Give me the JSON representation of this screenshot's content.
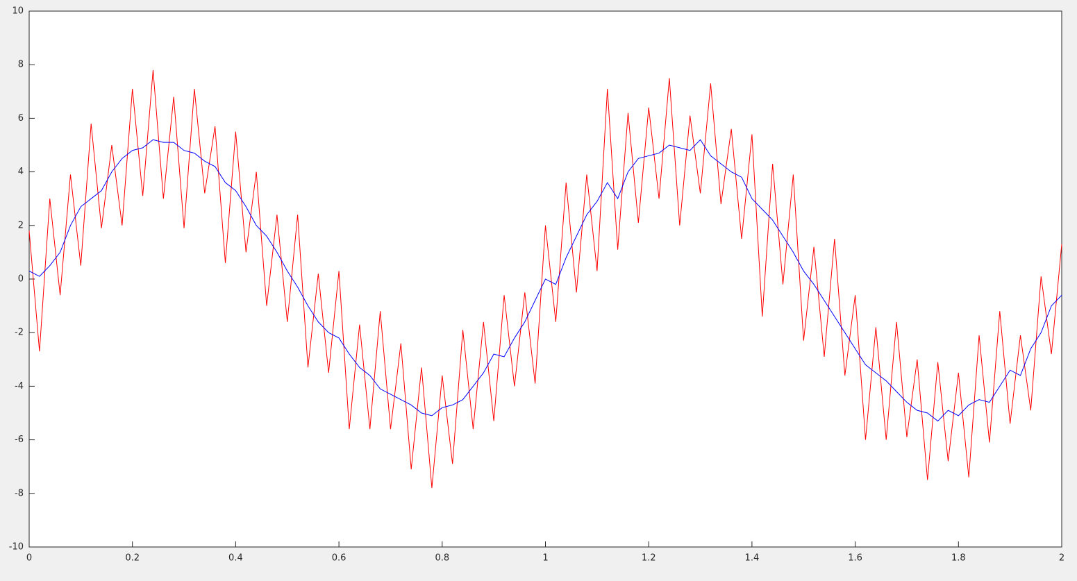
{
  "chart_data": {
    "type": "line",
    "x": [
      0,
      0.02,
      0.04,
      0.06,
      0.08,
      0.1,
      0.12,
      0.14,
      0.16,
      0.18,
      0.2,
      0.22,
      0.24,
      0.26,
      0.28,
      0.3,
      0.32,
      0.34,
      0.36,
      0.38,
      0.4,
      0.42,
      0.44,
      0.46,
      0.48,
      0.5,
      0.52,
      0.54,
      0.56,
      0.58,
      0.6,
      0.62,
      0.64,
      0.66,
      0.68,
      0.7,
      0.72,
      0.74,
      0.76,
      0.78,
      0.8,
      0.82,
      0.84,
      0.86,
      0.88,
      0.9,
      0.92,
      0.94,
      0.96,
      0.98,
      1,
      1.02,
      1.04,
      1.06,
      1.08,
      1.1,
      1.12,
      1.14,
      1.16,
      1.18,
      1.2,
      1.22,
      1.24,
      1.26,
      1.28,
      1.3,
      1.32,
      1.34,
      1.36,
      1.38,
      1.4,
      1.42,
      1.44,
      1.46,
      1.48,
      1.5,
      1.52,
      1.54,
      1.56,
      1.58,
      1.6,
      1.62,
      1.64,
      1.66,
      1.68,
      1.7,
      1.72,
      1.74,
      1.76,
      1.78,
      1.8,
      1.82,
      1.84,
      1.86,
      1.88,
      1.9,
      1.92,
      1.94,
      1.96,
      1.98,
      2
    ],
    "series": [
      {
        "color": "#ff0000",
        "values": [
          1.8,
          -2.7,
          3.0,
          -0.6,
          3.9,
          0.5,
          5.8,
          1.9,
          5.0,
          2.0,
          7.1,
          3.1,
          7.8,
          3.0,
          6.8,
          1.9,
          7.1,
          3.2,
          5.7,
          0.6,
          5.5,
          1.0,
          4.0,
          -1.0,
          2.4,
          -1.6,
          2.4,
          -3.3,
          0.2,
          -3.5,
          0.3,
          -5.6,
          -1.7,
          -5.6,
          -1.2,
          -5.6,
          -2.4,
          -7.1,
          -3.3,
          -7.8,
          -3.6,
          -6.9,
          -1.9,
          -5.6,
          -1.6,
          -5.3,
          -0.6,
          -4.0,
          -0.5,
          -3.9,
          2.0,
          -1.6,
          3.6,
          -0.5,
          3.9,
          0.3,
          7.1,
          1.1,
          6.2,
          2.1,
          6.4,
          3.0,
          7.5,
          2.0,
          6.1,
          3.2,
          7.3,
          2.8,
          5.6,
          1.5,
          5.4,
          -1.4,
          4.3,
          -0.2,
          3.9,
          -2.3,
          1.2,
          -2.9,
          1.5,
          -3.6,
          -0.6,
          -6.0,
          -1.8,
          -6.0,
          -1.6,
          -5.9,
          -3.0,
          -7.5,
          -3.1,
          -6.8,
          -3.5,
          -7.4,
          -2.1,
          -6.1,
          -1.2,
          -5.4,
          -2.1,
          -4.9,
          0.1,
          -2.8,
          1.3
        ]
      },
      {
        "color": "#0000ff",
        "values": [
          0.3,
          0.1,
          0.5,
          1.0,
          2.0,
          2.7,
          3.0,
          3.3,
          4.0,
          4.5,
          4.8,
          4.9,
          5.2,
          5.1,
          5.1,
          4.8,
          4.7,
          4.4,
          4.2,
          3.6,
          3.3,
          2.7,
          2.0,
          1.6,
          1.0,
          0.3,
          -0.3,
          -1.0,
          -1.6,
          -2.0,
          -2.2,
          -2.8,
          -3.3,
          -3.6,
          -4.1,
          -4.3,
          -4.5,
          -4.7,
          -5.0,
          -5.1,
          -4.8,
          -4.7,
          -4.5,
          -4.0,
          -3.5,
          -2.8,
          -2.9,
          -2.2,
          -1.6,
          -0.8,
          0.0,
          -0.2,
          0.8,
          1.6,
          2.4,
          2.9,
          3.6,
          3.0,
          4.0,
          4.5,
          4.6,
          4.7,
          5.0,
          4.9,
          4.8,
          5.2,
          4.6,
          4.3,
          4.0,
          3.8,
          3.0,
          2.6,
          2.2,
          1.6,
          1.0,
          0.3,
          -0.2,
          -0.8,
          -1.4,
          -2.0,
          -2.6,
          -3.2,
          -3.5,
          -3.8,
          -4.2,
          -4.6,
          -4.9,
          -5.0,
          -5.3,
          -4.9,
          -5.1,
          -4.7,
          -4.5,
          -4.6,
          -4.0,
          -3.4,
          -3.6,
          -2.6,
          -2.0,
          -1.0,
          -0.6
        ]
      }
    ],
    "xlim": [
      0,
      2
    ],
    "xticks": [
      0,
      0.2,
      0.4,
      0.6,
      0.8,
      1,
      1.2,
      1.4,
      1.6,
      1.8,
      2
    ],
    "ylim": [
      -10,
      10
    ],
    "yticks": [
      -10,
      -8,
      -6,
      -4,
      -2,
      0,
      2,
      4,
      6,
      8,
      10
    ]
  }
}
